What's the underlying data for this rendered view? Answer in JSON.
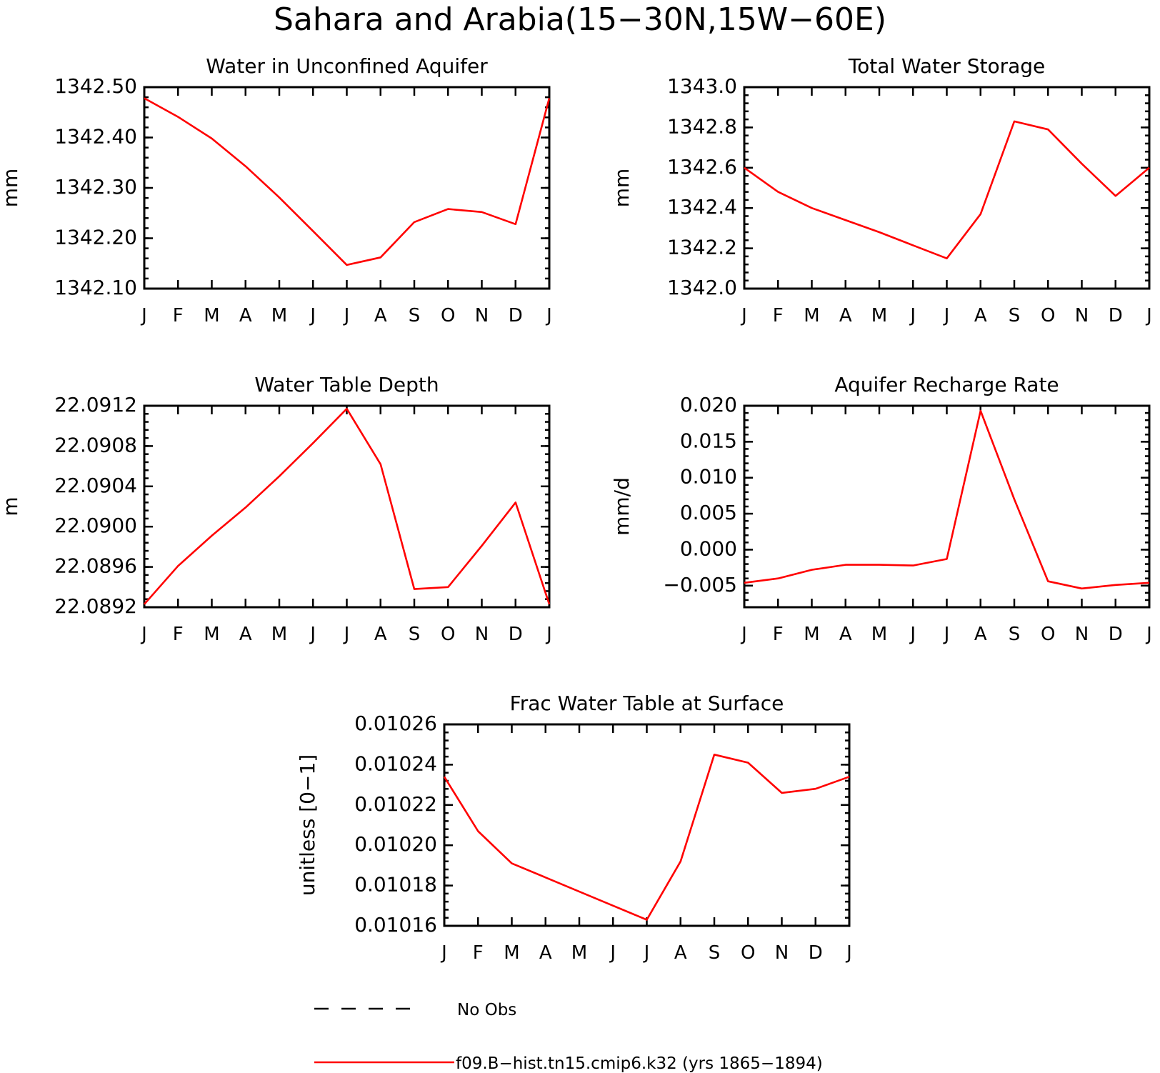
{
  "page_title": "Sahara and Arabia(15−30N,15W−60E)",
  "colors": {
    "model": "#ff0000",
    "obs": "#000000"
  },
  "legend": {
    "obs_label": "No Obs",
    "model_label": "f09.B−hist.tn15.cmip6.k32 (yrs 1865−1894)"
  },
  "chart_data": [
    {
      "id": "unconfined",
      "type": "line",
      "title": "Water in Unconfined Aquifer",
      "ylabel": "mm",
      "xlabel": "",
      "categories": [
        "J",
        "F",
        "M",
        "A",
        "M",
        "J",
        "J",
        "A",
        "S",
        "O",
        "N",
        "D",
        "J"
      ],
      "ylim": [
        1342.1,
        1342.5
      ],
      "yticks": [
        "1342.10",
        "1342.20",
        "1342.30",
        "1342.40",
        "1342.50"
      ],
      "series": [
        {
          "values": [
            1342.478,
            1342.441,
            1342.398,
            1342.343,
            1342.281,
            1342.214,
            1342.147,
            1342.162,
            1342.232,
            1342.258,
            1342.252,
            1342.228,
            1342.478
          ]
        }
      ]
    },
    {
      "id": "tws",
      "type": "line",
      "title": "Total Water Storage",
      "ylabel": "mm",
      "xlabel": "",
      "categories": [
        "J",
        "F",
        "M",
        "A",
        "M",
        "J",
        "J",
        "A",
        "S",
        "O",
        "N",
        "D",
        "J"
      ],
      "ylim": [
        1342.0,
        1343.0
      ],
      "yticks": [
        "1342.0",
        "1342.2",
        "1342.4",
        "1342.6",
        "1342.8",
        "1343.0"
      ],
      "series": [
        {
          "values": [
            1342.6,
            1342.48,
            1342.4,
            1342.34,
            1342.28,
            1342.215,
            1342.15,
            1342.37,
            1342.83,
            1342.79,
            1342.62,
            1342.46,
            1342.6
          ]
        }
      ]
    },
    {
      "id": "wtd",
      "type": "line",
      "title": "Water Table Depth",
      "ylabel": "m",
      "xlabel": "",
      "categories": [
        "J",
        "F",
        "M",
        "A",
        "M",
        "J",
        "J",
        "A",
        "S",
        "O",
        "N",
        "D",
        "J"
      ],
      "ylim": [
        22.0892,
        22.0912
      ],
      "yticks": [
        "22.0892",
        "22.0896",
        "22.0900",
        "22.0904",
        "22.0908",
        "22.0912"
      ],
      "series": [
        {
          "values": [
            22.08923,
            22.08961,
            22.08991,
            22.09019,
            22.0905,
            22.09083,
            22.09117,
            22.09062,
            22.08938,
            22.0894,
            22.08981,
            22.09024,
            22.08923
          ]
        }
      ]
    },
    {
      "id": "recharge",
      "type": "line",
      "title": "Aquifer Recharge Rate",
      "ylabel": "mm/d",
      "xlabel": "",
      "categories": [
        "J",
        "F",
        "M",
        "A",
        "M",
        "J",
        "J",
        "A",
        "S",
        "O",
        "N",
        "D",
        "J"
      ],
      "ylim": [
        -0.008,
        0.02
      ],
      "yticks": [
        "−0.005",
        "0.000",
        "0.005",
        "0.010",
        "0.015",
        "0.020"
      ],
      "series": [
        {
          "values": [
            -0.0046,
            -0.004,
            -0.0028,
            -0.0021,
            -0.0021,
            -0.0022,
            -0.0013,
            0.0193,
            0.007,
            -0.0044,
            -0.0054,
            -0.0049,
            -0.0046
          ]
        }
      ]
    },
    {
      "id": "fracwt",
      "type": "line",
      "title": "Frac Water Table at Surface",
      "ylabel": "unitless [0−1]",
      "xlabel": "",
      "categories": [
        "J",
        "F",
        "M",
        "A",
        "M",
        "J",
        "J",
        "A",
        "S",
        "O",
        "N",
        "D",
        "J"
      ],
      "ylim": [
        0.01016,
        0.01026
      ],
      "yticks": [
        "0.01016",
        "0.01018",
        "0.01020",
        "0.01022",
        "0.01024",
        "0.01026"
      ],
      "series": [
        {
          "values": [
            0.010234,
            0.010207,
            0.010191,
            0.010184,
            0.010177,
            0.01017,
            0.010163,
            0.010192,
            0.010245,
            0.010241,
            0.010226,
            0.010228,
            0.010234
          ]
        }
      ]
    }
  ]
}
